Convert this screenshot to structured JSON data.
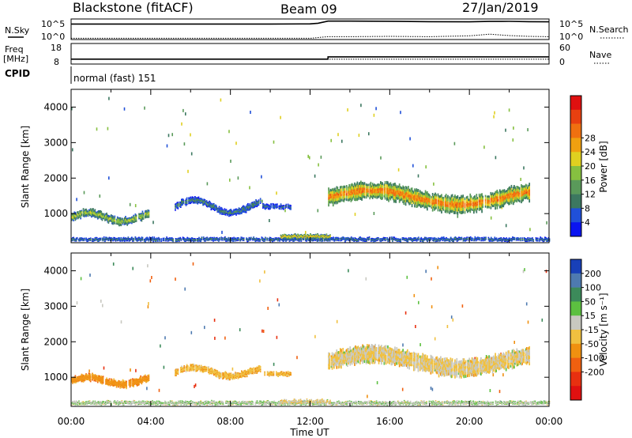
{
  "header": {
    "station": "Blackstone (fitACF)",
    "beam": "Beam 09",
    "date": "27/Jan/2019"
  },
  "aux_labels": {
    "nsky": "N.Sky",
    "nsearch": "N.Search",
    "freq_top": "Freq",
    "freq_unit": "[MHz]",
    "cpid": "CPID",
    "nave": "Nave",
    "noise_hi": "10^5",
    "noise_lo": "10^0",
    "freq_hi": "18",
    "freq_lo": "8",
    "nave_hi": "60",
    "nave_lo": "0",
    "cpid_text": "normal (fast) 151"
  },
  "chart_data": [
    {
      "type": "line",
      "name": "noise-panel",
      "xlim": [
        0,
        24
      ],
      "ylog": true,
      "ylim": [
        1,
        100000
      ],
      "series": [
        {
          "name": "N.Sky",
          "style": "solid",
          "x": [
            0,
            2,
            4,
            6,
            8,
            10,
            12,
            12.4,
            12.9,
            14,
            16,
            18,
            20,
            21,
            22,
            23,
            24
          ],
          "values": [
            6000,
            6000,
            6000,
            6000,
            6000,
            6000,
            6500,
            9000,
            30000,
            30000,
            28000,
            22000,
            20000,
            25000,
            26000,
            22000,
            20000
          ]
        },
        {
          "name": "N.Search",
          "style": "dotted",
          "x": [
            0,
            2,
            4,
            6,
            8,
            10,
            12,
            12.9,
            14,
            16,
            18,
            20,
            21,
            22,
            23,
            24
          ],
          "values": [
            2,
            2,
            2,
            2,
            2,
            2,
            2,
            5,
            5,
            6,
            5,
            8,
            20,
            9,
            6,
            5
          ]
        }
      ]
    },
    {
      "type": "line",
      "name": "freq-nave-panel",
      "xlim": [
        0,
        24
      ],
      "series": [
        {
          "name": "Freq",
          "style": "solid",
          "ylim": [
            8,
            18
          ],
          "x": [
            0,
            12.9,
            12.9,
            24
          ],
          "values": [
            10.4,
            10.4,
            11.5,
            11.5
          ]
        },
        {
          "name": "Nave",
          "style": "dotted",
          "ylim": [
            0,
            60
          ],
          "x": [
            0,
            24
          ],
          "values": [
            14,
            14
          ]
        }
      ]
    },
    {
      "type": "heatmap",
      "name": "power-panel",
      "xlabel": "",
      "ylabel": "Slant Range [km]",
      "xlim": [
        0,
        24
      ],
      "ylim": [
        180,
        4500
      ],
      "yticks": [
        1000,
        2000,
        3000,
        4000
      ],
      "colorbar": {
        "label": "Power [dB]",
        "ticks": [
          "4",
          "8",
          "12",
          "16",
          "20",
          "24",
          "28"
        ],
        "colors": [
          "#0a14f0",
          "#2050d8",
          "#3c7860",
          "#5a9a5a",
          "#86c040",
          "#e0d020",
          "#f0a010",
          "#f07010",
          "#e84010",
          "#e01010"
        ],
        "range": [
          0,
          32
        ]
      },
      "blobs": [
        {
          "t0": 0.0,
          "t1": 3.9,
          "center": 900,
          "thickness": 260,
          "rise": 120,
          "core": 17
        },
        {
          "t0": 5.2,
          "t1": 9.5,
          "center": 1200,
          "thickness": 220,
          "rise": 180,
          "core": 9
        },
        {
          "t0": 9.6,
          "t1": 11.0,
          "center": 1200,
          "thickness": 160,
          "rise": 0,
          "core": 7
        },
        {
          "t0": 12.9,
          "t1": 23.0,
          "center": 1450,
          "thickness": 560,
          "rise": 200,
          "core": 26
        },
        {
          "t0": 0.0,
          "t1": 24.0,
          "center": 280,
          "thickness": 110,
          "rise": 0,
          "core": 9
        },
        {
          "t0": 10.5,
          "t1": 13.0,
          "center": 360,
          "thickness": 130,
          "rise": 0,
          "core": 22
        }
      ]
    },
    {
      "type": "heatmap",
      "name": "velocity-panel",
      "xlabel": "Time UT",
      "ylabel": "Slant Range [km]",
      "xlim": [
        0,
        24
      ],
      "ylim": [
        180,
        4500
      ],
      "yticks": [
        1000,
        2000,
        3000,
        4000
      ],
      "xticks": [
        "00:00",
        "04:00",
        "08:00",
        "12:00",
        "16:00",
        "20:00",
        "00:00"
      ],
      "colorbar": {
        "label": "Velocity [m s⁻¹]",
        "ticks": [
          "200",
          "100",
          "50",
          "15",
          "-15",
          "-50",
          "-100",
          "-200"
        ],
        "colors": [
          "#1840b8",
          "#4e7ab0",
          "#3c8a5a",
          "#5cc040",
          "#c8c8c0",
          "#f0c040",
          "#f09010",
          "#f06010",
          "#e83010",
          "#e01010"
        ],
        "range": [
          -250,
          250
        ]
      },
      "blobs": [
        {
          "t0": 0.0,
          "t1": 3.9,
          "center": 900,
          "thickness": 240,
          "rise": 100,
          "vel": -70
        },
        {
          "t0": 5.2,
          "t1": 9.5,
          "center": 1150,
          "thickness": 220,
          "rise": 120,
          "vel": -40
        },
        {
          "t0": 9.6,
          "t1": 11.0,
          "center": 1100,
          "thickness": 140,
          "rise": 0,
          "vel": -40
        },
        {
          "t0": 12.9,
          "t1": 23.0,
          "center": 1450,
          "thickness": 560,
          "rise": 200,
          "vel": 0
        },
        {
          "t0": 0.0,
          "t1": 24.0,
          "center": 280,
          "thickness": 110,
          "rise": 0,
          "vel": 40
        },
        {
          "t0": 10.5,
          "t1": 13.0,
          "center": 320,
          "thickness": 120,
          "rise": 0,
          "vel": 0
        }
      ]
    }
  ]
}
